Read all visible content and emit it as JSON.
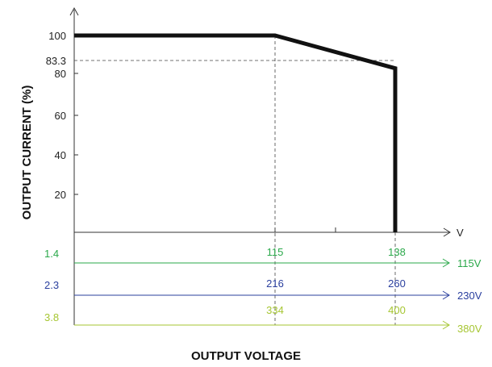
{
  "chart_data": {
    "type": "line",
    "title": "",
    "xlabel": "OUTPUT VOLTAGE",
    "ylabel": "OUTPUT CURRENT (%)",
    "x_unit": "V",
    "x": [
      0,
      115,
      138,
      138
    ],
    "values": [
      100,
      100,
      83.3,
      0
    ],
    "ylim": [
      0,
      110
    ],
    "y_ticks": [
      "20",
      "40",
      "60",
      "80",
      "100"
    ],
    "y_marker": "83.3",
    "grid": false,
    "voltage_scales": [
      {
        "name": "115V",
        "start": "1.4",
        "mid": "115",
        "end": "138",
        "color": "#2aa84a"
      },
      {
        "name": "230V",
        "start": "2.3",
        "mid": "216",
        "end": "260",
        "color": "#2a3f9e"
      },
      {
        "name": "380V",
        "start": "3.8",
        "mid": "334",
        "end": "400",
        "color": "#a6c632"
      }
    ]
  }
}
